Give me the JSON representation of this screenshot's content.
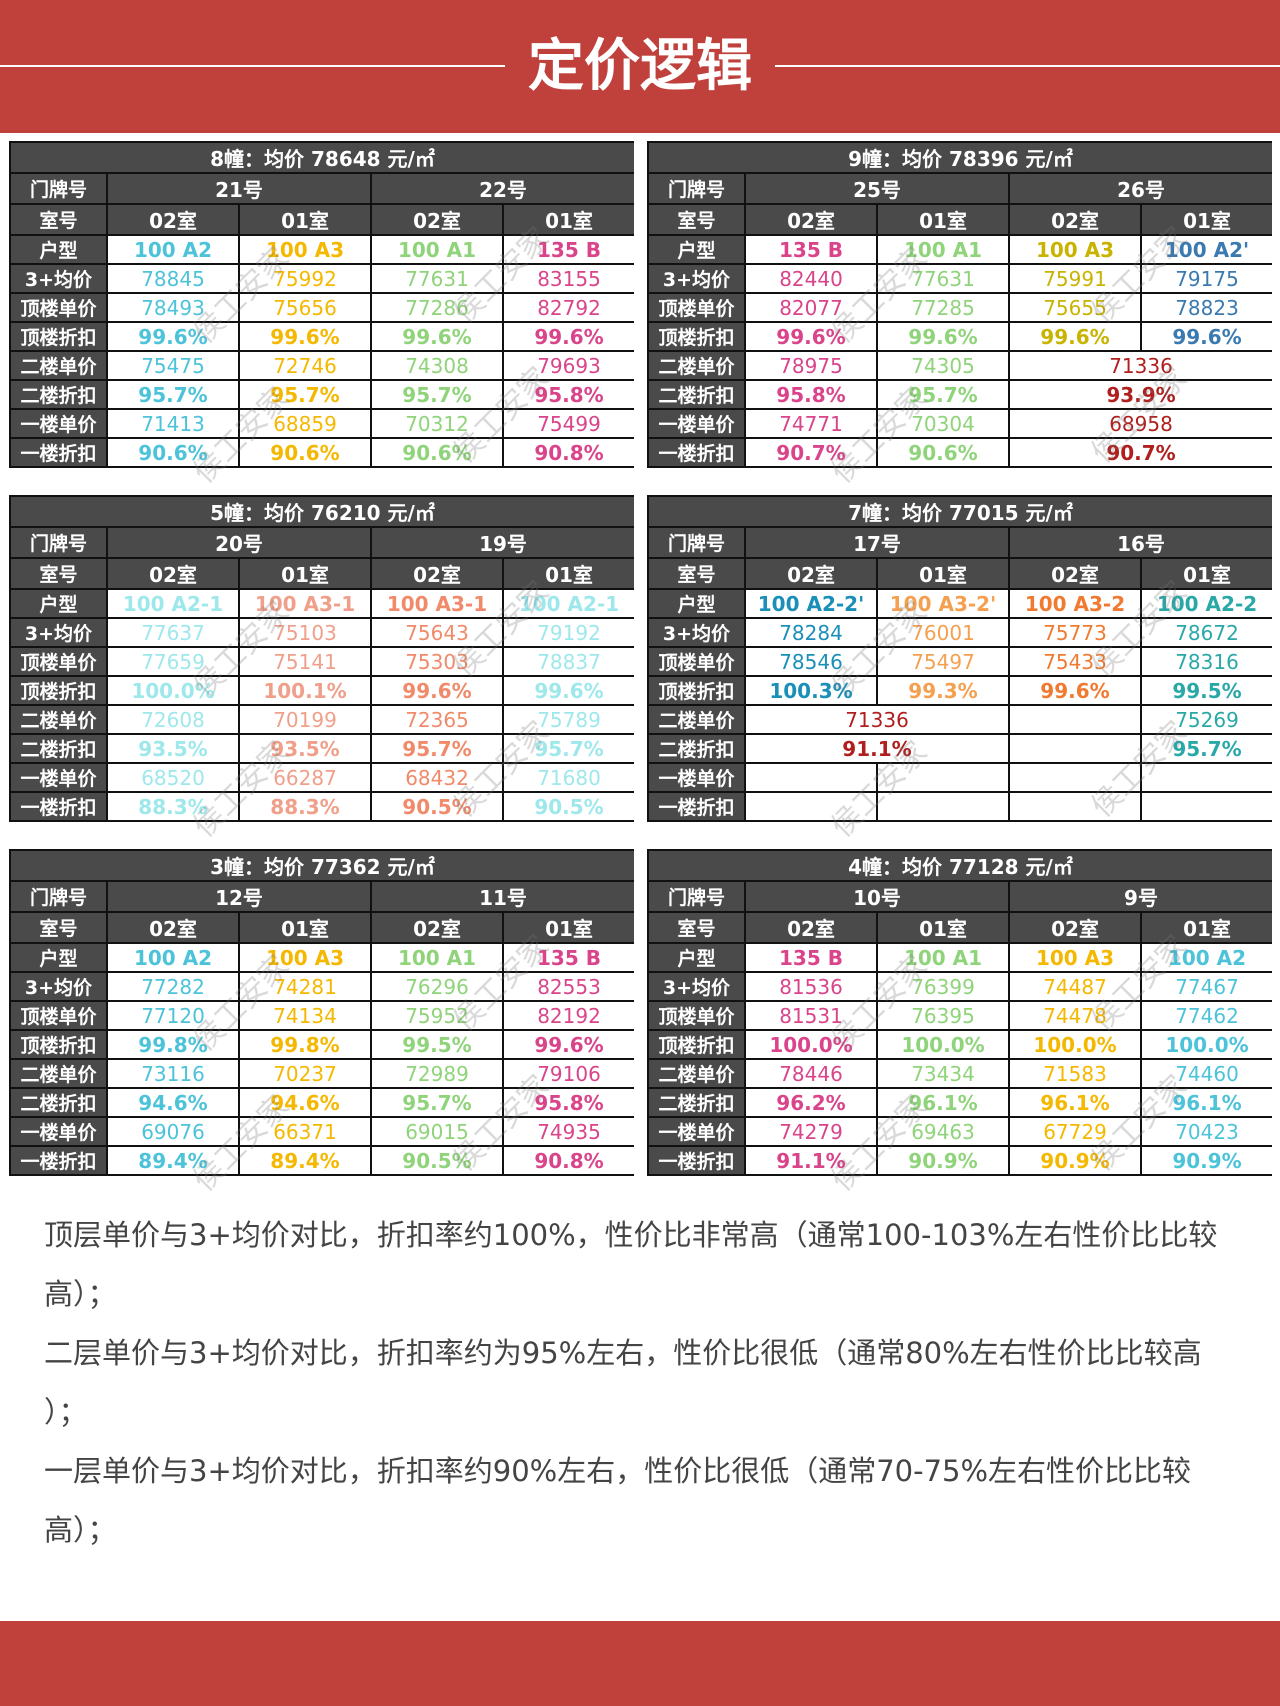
{
  "header": {
    "title": "定价逻辑"
  },
  "watermark": "侯工安家",
  "tables": [
    {
      "title": "8幢：均价 78648 元/㎡",
      "door_label": "门牌号",
      "doors": [
        "21号",
        "22号"
      ],
      "room_label": "室号",
      "rooms": [
        "02室",
        "01室",
        "02室",
        "01室"
      ],
      "colors": [
        "#4cc3d9",
        "#f5b800",
        "#8fd47a",
        "#d9448a"
      ],
      "merged_color": "#b01e1e",
      "rows": [
        {
          "label": "户型",
          "cells": [
            "100 A2",
            "100 A3",
            "100 A1",
            "135 B"
          ]
        },
        {
          "label": "3+均价",
          "cells": [
            "78845",
            "75992",
            "77631",
            "83155"
          ]
        },
        {
          "label": "顶楼单价",
          "cells": [
            "78493",
            "75656",
            "77286",
            "82792"
          ]
        },
        {
          "label": "顶楼折扣",
          "cells": [
            "99.6%",
            "99.6%",
            "99.6%",
            "99.6%"
          ]
        },
        {
          "label": "二楼单价",
          "cells": [
            "75475",
            "72746",
            "74308",
            "79693"
          ]
        },
        {
          "label": "二楼折扣",
          "cells": [
            "95.7%",
            "95.7%",
            "95.7%",
            "95.8%"
          ]
        },
        {
          "label": "一楼单价",
          "cells": [
            "71413",
            "68859",
            "70312",
            "75499"
          ]
        },
        {
          "label": "一楼折扣",
          "cells": [
            "90.6%",
            "90.6%",
            "90.6%",
            "90.8%"
          ]
        }
      ]
    },
    {
      "title": "9幢：均价 78396 元/㎡",
      "door_label": "门牌号",
      "doors": [
        "25号",
        "26号"
      ],
      "room_label": "室号",
      "rooms": [
        "02室",
        "01室",
        "02室",
        "01室"
      ],
      "colors": [
        "#d9448a",
        "#8fd47a",
        "#c8b400",
        "#3a7ab0"
      ],
      "merged_color": "#b01e1e",
      "rows": [
        {
          "label": "户型",
          "cells": [
            "135 B",
            "100 A1",
            "100 A3",
            "100 A2'"
          ]
        },
        {
          "label": "3+均价",
          "cells": [
            "82440",
            "77631",
            "75991",
            "79175"
          ]
        },
        {
          "label": "顶楼单价",
          "cells": [
            "82077",
            "77285",
            "75655",
            "78823"
          ]
        },
        {
          "label": "顶楼折扣",
          "cells": [
            "99.6%",
            "99.6%",
            "99.6%",
            "99.6%"
          ]
        },
        {
          "label": "二楼单价",
          "cells": [
            "78975",
            "74305",
            {
              "text": "71336",
              "span": 2
            }
          ]
        },
        {
          "label": "二楼折扣",
          "cells": [
            "95.8%",
            "95.7%",
            {
              "text": "93.9%",
              "span": 2
            }
          ]
        },
        {
          "label": "一楼单价",
          "cells": [
            "74771",
            "70304",
            {
              "text": "68958",
              "span": 2
            }
          ]
        },
        {
          "label": "一楼折扣",
          "cells": [
            "90.7%",
            "90.6%",
            {
              "text": "90.7%",
              "span": 2
            }
          ]
        }
      ]
    },
    {
      "title": "5幢：均价 76210 元/㎡",
      "door_label": "门牌号",
      "doors": [
        "20号",
        "19号"
      ],
      "room_label": "室号",
      "rooms": [
        "02室",
        "01室",
        "02室",
        "01室"
      ],
      "colors": [
        "#9ee8ec",
        "#f0a08a",
        "#f08a6a",
        "#9ee8ec"
      ],
      "merged_color": "#b01e1e",
      "rows": [
        {
          "label": "户型",
          "cells": [
            "100 A2-1",
            "100 A3-1",
            "100 A3-1",
            "100 A2-1"
          ]
        },
        {
          "label": "3+均价",
          "cells": [
            "77637",
            "75103",
            "75643",
            "79192"
          ]
        },
        {
          "label": "顶楼单价",
          "cells": [
            "77659",
            "75141",
            "75303",
            "78837"
          ]
        },
        {
          "label": "顶楼折扣",
          "cells": [
            "100.0%",
            "100.1%",
            "99.6%",
            "99.6%"
          ]
        },
        {
          "label": "二楼单价",
          "cells": [
            "72608",
            "70199",
            "72365",
            "75789"
          ]
        },
        {
          "label": "二楼折扣",
          "cells": [
            "93.5%",
            "93.5%",
            "95.7%",
            "95.7%"
          ]
        },
        {
          "label": "一楼单价",
          "cells": [
            "68520",
            "66287",
            "68432",
            "71680"
          ]
        },
        {
          "label": "一楼折扣",
          "cells": [
            "88.3%",
            "88.3%",
            "90.5%",
            "90.5%"
          ]
        }
      ]
    },
    {
      "title": "7幢：均价 77015 元/㎡",
      "door_label": "门牌号",
      "doors": [
        "17号",
        "16号"
      ],
      "room_label": "室号",
      "rooms": [
        "02室",
        "01室",
        "02室",
        "01室"
      ],
      "colors": [
        "#1a8fb8",
        "#f5a050",
        "#f07a30",
        "#2aa8a8"
      ],
      "merged_color": "#b01e1e",
      "rows": [
        {
          "label": "户型",
          "cells": [
            "100 A2-2'",
            "100 A3-2'",
            "100 A3-2",
            "100 A2-2"
          ]
        },
        {
          "label": "3+均价",
          "cells": [
            "78284",
            "76001",
            "75773",
            "78672"
          ]
        },
        {
          "label": "顶楼单价",
          "cells": [
            "78546",
            "75497",
            "75433",
            "78316"
          ]
        },
        {
          "label": "顶楼折扣",
          "cells": [
            "100.3%",
            "99.3%",
            "99.6%",
            "99.5%"
          ]
        },
        {
          "label": "二楼单价",
          "cells": [
            {
              "text": "71336",
              "span": 2
            },
            null,
            "75269"
          ]
        },
        {
          "label": "二楼折扣",
          "cells": [
            {
              "text": "91.1%",
              "span": 2
            },
            null,
            "95.7%"
          ]
        },
        {
          "label": "一楼单价",
          "cells": [
            null,
            null,
            null,
            null
          ]
        },
        {
          "label": "一楼折扣",
          "cells": [
            null,
            null,
            null,
            null
          ]
        }
      ]
    },
    {
      "title": "3幢：均价 77362 元/㎡",
      "door_label": "门牌号",
      "doors": [
        "12号",
        "11号"
      ],
      "room_label": "室号",
      "rooms": [
        "02室",
        "01室",
        "02室",
        "01室"
      ],
      "colors": [
        "#4cc3d9",
        "#f5b800",
        "#8fd47a",
        "#d9448a"
      ],
      "merged_color": "#b01e1e",
      "rows": [
        {
          "label": "户型",
          "cells": [
            "100 A2",
            "100 A3",
            "100 A1",
            "135 B"
          ]
        },
        {
          "label": "3+均价",
          "cells": [
            "77282",
            "74281",
            "76296",
            "82553"
          ]
        },
        {
          "label": "顶楼单价",
          "cells": [
            "77120",
            "74134",
            "75952",
            "82192"
          ]
        },
        {
          "label": "顶楼折扣",
          "cells": [
            "99.8%",
            "99.8%",
            "99.5%",
            "99.6%"
          ]
        },
        {
          "label": "二楼单价",
          "cells": [
            "73116",
            "70237",
            "72989",
            "79106"
          ]
        },
        {
          "label": "二楼折扣",
          "cells": [
            "94.6%",
            "94.6%",
            "95.7%",
            "95.8%"
          ]
        },
        {
          "label": "一楼单价",
          "cells": [
            "69076",
            "66371",
            "69015",
            "74935"
          ]
        },
        {
          "label": "一楼折扣",
          "cells": [
            "89.4%",
            "89.4%",
            "90.5%",
            "90.8%"
          ]
        }
      ]
    },
    {
      "title": "4幢：均价 77128 元/㎡",
      "door_label": "门牌号",
      "doors": [
        "10号",
        "9号"
      ],
      "room_label": "室号",
      "rooms": [
        "02室",
        "01室",
        "02室",
        "01室"
      ],
      "colors": [
        "#d9448a",
        "#8fd47a",
        "#f5b800",
        "#4cc3d9"
      ],
      "merged_color": "#b01e1e",
      "rows": [
        {
          "label": "户型",
          "cells": [
            "135 B",
            "100 A1",
            "100 A3",
            "100 A2"
          ]
        },
        {
          "label": "3+均价",
          "cells": [
            "81536",
            "76399",
            "74487",
            "77467"
          ]
        },
        {
          "label": "顶楼单价",
          "cells": [
            "81531",
            "76395",
            "74478",
            "77462"
          ]
        },
        {
          "label": "顶楼折扣",
          "cells": [
            "100.0%",
            "100.0%",
            "100.0%",
            "100.0%"
          ]
        },
        {
          "label": "二楼单价",
          "cells": [
            "78446",
            "73434",
            "71583",
            "74460"
          ]
        },
        {
          "label": "二楼折扣",
          "cells": [
            "96.2%",
            "96.1%",
            "96.1%",
            "96.1%"
          ]
        },
        {
          "label": "一楼单价",
          "cells": [
            "74279",
            "69463",
            "67729",
            "70423"
          ]
        },
        {
          "label": "一楼折扣",
          "cells": [
            "91.1%",
            "90.9%",
            "90.9%",
            "90.9%"
          ]
        }
      ]
    }
  ],
  "notes": [
    "顶层单价与3+均价对比，折扣率约100%，性价比非常高（通常100-103%左右性价比比较高）；",
    "二层单价与3+均价对比，折扣率约为95%左右，性价比很低（通常80%左右性价比比较高 ）；",
    "一层单价与3+均价对比，折扣率约90%左右，性价比很低（通常70-75%左右性价比比较高）；"
  ]
}
